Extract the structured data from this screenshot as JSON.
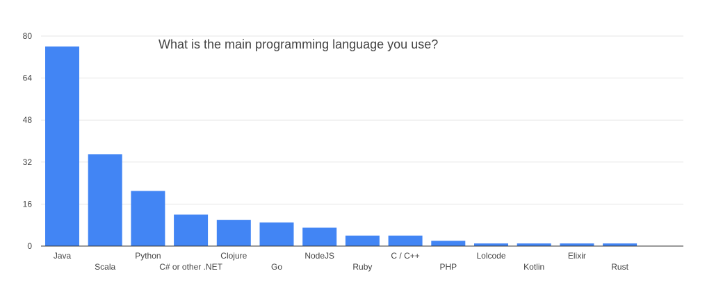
{
  "chart_data": {
    "type": "bar",
    "title": "What is the main programming language you use?",
    "xlabel": "",
    "ylabel": "",
    "ylim": [
      0,
      80
    ],
    "yticks": [
      0,
      16,
      32,
      48,
      64,
      80
    ],
    "grid": true,
    "categories": [
      "Java",
      "Scala",
      "Python",
      "C# or other .NET",
      "Clojure",
      "Go",
      "NodeJS",
      "Ruby",
      "C / C++",
      "PHP",
      "Lolcode",
      "Kotlin",
      "Elixir",
      "Rust"
    ],
    "values": [
      76,
      35,
      21,
      12,
      10,
      9,
      7,
      4,
      4,
      2,
      1,
      1,
      1,
      1
    ],
    "bar_color": "#4285f4"
  }
}
